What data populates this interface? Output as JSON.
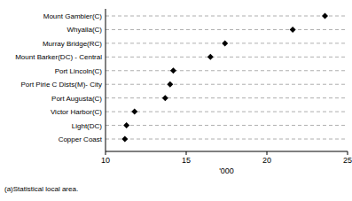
{
  "chart_data": {
    "type": "dot",
    "orientation": "horizontal",
    "categories": [
      "Mount Gambier(C)",
      "Whyalla(C)",
      "Murray Bridge(RC)",
      "Mount Barker(DC) - Central",
      "Port Lincoln(C)",
      "Port Pirie C Dists(M)- City",
      "Port Augusta(C)",
      "Victor Harbor(C)",
      "Light(DC)",
      "Copper Coast"
    ],
    "values": [
      23.6,
      21.6,
      17.4,
      16.5,
      14.2,
      14.0,
      13.7,
      11.8,
      11.3,
      11.2
    ],
    "xlabel": "'000",
    "xlim": [
      10,
      25
    ],
    "xticks": [
      10,
      15,
      20,
      25
    ],
    "grid": true,
    "marker": "diamond",
    "color": "#000000",
    "footnote": "(a)Statistical local area."
  }
}
